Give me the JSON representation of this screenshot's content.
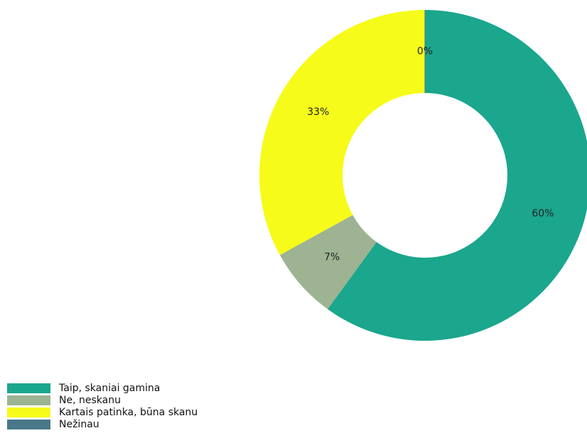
{
  "chart_data": {
    "type": "pie",
    "title": "",
    "donut": true,
    "legend_position": "bottom-left",
    "slices": [
      {
        "label": "Taip, skaniai gamina",
        "value": 60,
        "value_label": "60%",
        "color": "#1ba68e"
      },
      {
        "label": "Ne, neskanu",
        "value": 7,
        "value_label": "7%",
        "color": "#9db392"
      },
      {
        "label": "Kartais patinka, būna skanu",
        "value": 33,
        "value_label": "33%",
        "color": "#f6fb1a"
      },
      {
        "label": "Nežinau",
        "value": 0,
        "value_label": "0%",
        "color": "#4a7889"
      }
    ]
  }
}
